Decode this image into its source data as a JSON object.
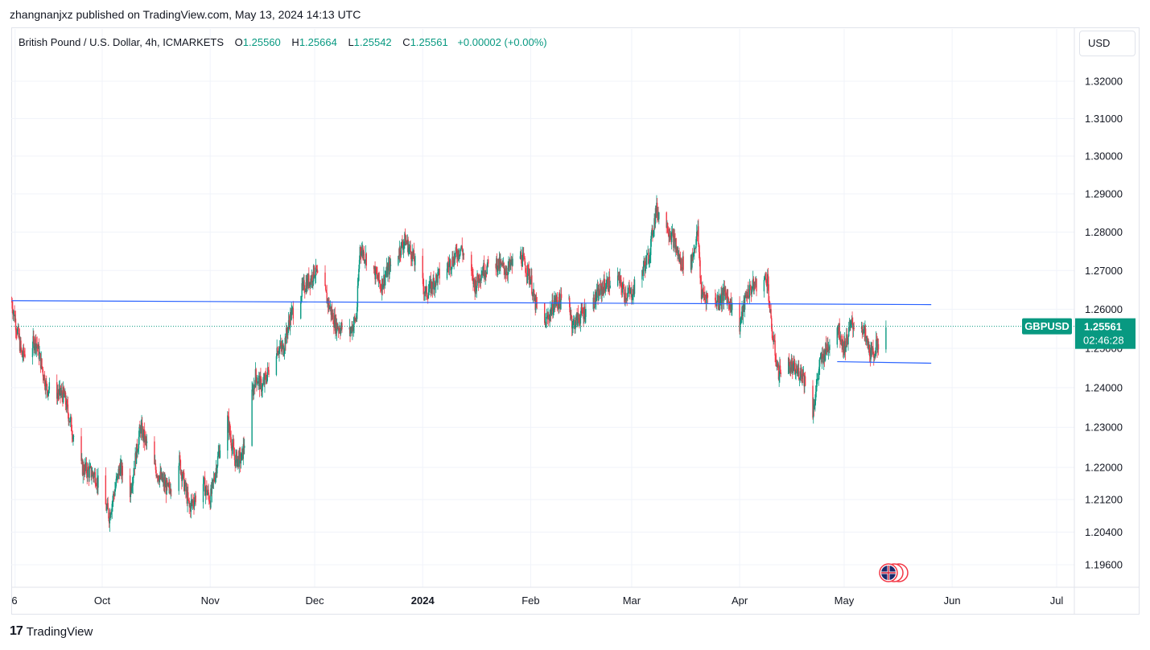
{
  "header": {
    "publisher_line": "zhangnanjxz published on TradingView.com, May 13, 2024 14:13 UTC"
  },
  "legend": {
    "symbol": "British Pound / U.S. Dollar, 4h, ICMARKETS",
    "open_label": "O",
    "open": "1.25560",
    "high_label": "H",
    "high": "1.25664",
    "low_label": "L",
    "low": "1.25542",
    "close_label": "C",
    "close": "1.25561",
    "change": "+0.00002 (+0.00%)"
  },
  "currency_button": "USD",
  "price_tag": {
    "ticker": "GBPUSD",
    "price": "1.25561",
    "countdown": "02:46:28"
  },
  "footer": {
    "logo_mark": "17",
    "logo_text": "TradingView"
  },
  "colors": {
    "up": "#089981",
    "down": "#f23645",
    "trendline": "#2962ff",
    "grid": "#f0f3fa",
    "axis_text": "#131722"
  },
  "chart_data": {
    "type": "candlestick",
    "title": "British Pound / U.S. Dollar, 4h, ICMARKETS",
    "price_axis": {
      "ticks": [
        1.32,
        1.31,
        1.3,
        1.29,
        1.28,
        1.27,
        1.26,
        1.25,
        1.24,
        1.23,
        1.22,
        1.212,
        1.204,
        1.196
      ],
      "tick_labels": [
        "1.32000",
        "1.31000",
        "1.30000",
        "1.29000",
        "1.28000",
        "1.27000",
        "1.26000",
        "1.25000",
        "1.24000",
        "1.23000",
        "1.22000",
        "1.21200",
        "1.20400",
        "1.19600"
      ],
      "scale": "log"
    },
    "time_axis": {
      "labels": [
        "6",
        "Oct",
        "Nov",
        "Dec",
        "2024",
        "Feb",
        "Mar",
        "Apr",
        "May",
        "Jun",
        "Jul"
      ],
      "dates": [
        "2023-09-06",
        "2023-10-01",
        "2023-11-01",
        "2023-12-01",
        "2024-01-01",
        "2024-02-01",
        "2024-03-01",
        "2024-04-01",
        "2024-05-01",
        "2024-06-01",
        "2024-07-01"
      ],
      "range": [
        "2023-09-05",
        "2024-07-07"
      ]
    },
    "series": [
      {
        "type": "close_path",
        "points": [
          [
            "2023-09-05",
            1.262
          ],
          [
            "2023-09-08",
            1.248
          ],
          [
            "2023-09-12",
            1.252
          ],
          [
            "2023-09-15",
            1.24
          ],
          [
            "2023-09-20",
            1.238
          ],
          [
            "2023-09-25",
            1.22
          ],
          [
            "2023-09-29",
            1.218
          ],
          [
            "2023-10-03",
            1.208
          ],
          [
            "2023-10-06",
            1.22
          ],
          [
            "2023-10-09",
            1.214
          ],
          [
            "2023-10-12",
            1.23
          ],
          [
            "2023-10-16",
            1.22
          ],
          [
            "2023-10-20",
            1.214
          ],
          [
            "2023-10-23",
            1.222
          ],
          [
            "2023-10-26",
            1.21
          ],
          [
            "2023-10-30",
            1.216
          ],
          [
            "2023-11-01",
            1.212
          ],
          [
            "2023-11-04",
            1.226
          ],
          [
            "2023-11-06",
            1.232
          ],
          [
            "2023-11-08",
            1.222
          ],
          [
            "2023-11-10",
            1.222
          ],
          [
            "2023-11-14",
            1.243
          ],
          [
            "2023-11-16",
            1.24
          ],
          [
            "2023-11-20",
            1.25
          ],
          [
            "2023-11-22",
            1.25
          ],
          [
            "2023-11-24",
            1.258
          ],
          [
            "2023-11-28",
            1.266
          ],
          [
            "2023-11-30",
            1.268
          ],
          [
            "2023-12-01",
            1.27
          ],
          [
            "2023-12-04",
            1.264
          ],
          [
            "2023-12-07",
            1.256
          ],
          [
            "2023-12-11",
            1.254
          ],
          [
            "2023-12-13",
            1.258
          ],
          [
            "2023-12-14",
            1.276
          ],
          [
            "2023-12-18",
            1.27
          ],
          [
            "2023-12-20",
            1.266
          ],
          [
            "2023-12-22",
            1.27
          ],
          [
            "2023-12-27",
            1.278
          ],
          [
            "2023-12-29",
            1.274
          ],
          [
            "2024-01-02",
            1.264
          ],
          [
            "2024-01-05",
            1.268
          ],
          [
            "2024-01-09",
            1.272
          ],
          [
            "2024-01-12",
            1.276
          ],
          [
            "2024-01-16",
            1.266
          ],
          [
            "2024-01-18",
            1.27
          ],
          [
            "2024-01-22",
            1.272
          ],
          [
            "2024-01-25",
            1.27
          ],
          [
            "2024-01-29",
            1.274
          ],
          [
            "2024-02-01",
            1.268
          ],
          [
            "2024-02-02",
            1.262
          ],
          [
            "2024-02-05",
            1.256
          ],
          [
            "2024-02-08",
            1.262
          ],
          [
            "2024-02-12",
            1.262
          ],
          [
            "2024-02-13",
            1.256
          ],
          [
            "2024-02-15",
            1.258
          ],
          [
            "2024-02-19",
            1.262
          ],
          [
            "2024-02-22",
            1.266
          ],
          [
            "2024-02-26",
            1.268
          ],
          [
            "2024-02-28",
            1.264
          ],
          [
            "2024-03-01",
            1.264
          ],
          [
            "2024-03-04",
            1.27
          ],
          [
            "2024-03-06",
            1.274
          ],
          [
            "2024-03-08",
            1.286
          ],
          [
            "2024-03-11",
            1.282
          ],
          [
            "2024-03-13",
            1.278
          ],
          [
            "2024-03-15",
            1.272
          ],
          [
            "2024-03-18",
            1.272
          ],
          [
            "2024-03-20",
            1.28
          ],
          [
            "2024-03-21",
            1.264
          ],
          [
            "2024-03-25",
            1.262
          ],
          [
            "2024-03-28",
            1.264
          ],
          [
            "2024-04-01",
            1.256
          ],
          [
            "2024-04-03",
            1.264
          ],
          [
            "2024-04-05",
            1.266
          ],
          [
            "2024-04-09",
            1.268
          ],
          [
            "2024-04-10",
            1.256
          ],
          [
            "2024-04-12",
            1.244
          ],
          [
            "2024-04-15",
            1.246
          ],
          [
            "2024-04-17",
            1.244
          ],
          [
            "2024-04-19",
            1.244
          ],
          [
            "2024-04-22",
            1.234
          ],
          [
            "2024-04-24",
            1.246
          ],
          [
            "2024-04-26",
            1.25
          ],
          [
            "2024-04-29",
            1.256
          ],
          [
            "2024-05-01",
            1.25
          ],
          [
            "2024-05-03",
            1.256
          ],
          [
            "2024-05-06",
            1.256
          ],
          [
            "2024-05-08",
            1.25
          ],
          [
            "2024-05-09",
            1.248
          ],
          [
            "2024-05-13",
            1.2556
          ]
        ]
      }
    ],
    "trendlines": [
      {
        "from": [
          "2023-09-05",
          1.2622
        ],
        "to": [
          "2024-05-26",
          1.2612
        ]
      },
      {
        "from": [
          "2024-04-29",
          1.2466
        ],
        "to": [
          "2024-05-26",
          1.2462
        ]
      }
    ],
    "last_price": 1.25561,
    "last_price_line": "dotted"
  }
}
